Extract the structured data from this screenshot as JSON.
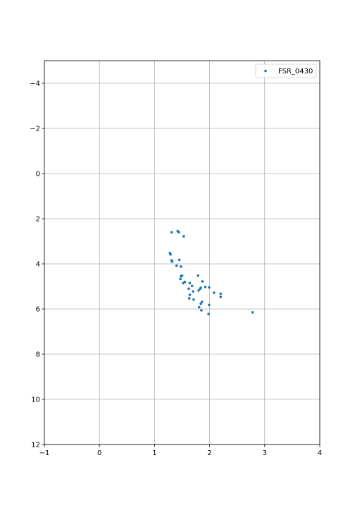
{
  "chart_data": {
    "type": "scatter",
    "title": "",
    "xlabel": "",
    "ylabel": "",
    "xlim": [
      -1,
      4
    ],
    "ylim": [
      12,
      -5
    ],
    "y_inverted": true,
    "x_ticks": [
      -1,
      0,
      1,
      2,
      3,
      4
    ],
    "x_tick_labels": [
      "−1",
      "0",
      "1",
      "2",
      "3",
      "4"
    ],
    "y_ticks": [
      -4,
      -2,
      0,
      2,
      4,
      6,
      8,
      10,
      12
    ],
    "y_tick_labels": [
      "−4",
      "−2",
      "0",
      "2",
      "4",
      "6",
      "8",
      "10",
      "12"
    ],
    "grid": true,
    "legend_position": "top-right",
    "series": [
      {
        "name": "FSR_0430",
        "color": "#1f77b4",
        "x": [
          1.31,
          1.42,
          1.44,
          1.53,
          1.28,
          1.29,
          1.31,
          1.32,
          1.45,
          1.4,
          1.48,
          1.5,
          1.48,
          1.47,
          1.55,
          1.52,
          1.79,
          1.64,
          1.68,
          1.62,
          1.7,
          1.8,
          1.87,
          1.92,
          1.84,
          1.83,
          1.99,
          2.08,
          2.2,
          2.2,
          1.64,
          1.63,
          1.71,
          1.86,
          1.84,
          1.81,
          1.99,
          1.85,
          1.98,
          2.78
        ],
        "y": [
          2.6,
          2.55,
          2.6,
          2.78,
          3.52,
          3.58,
          3.84,
          3.9,
          3.82,
          4.08,
          4.12,
          4.52,
          4.55,
          4.67,
          4.8,
          4.85,
          4.52,
          4.85,
          4.98,
          5.1,
          5.22,
          5.18,
          4.78,
          5.02,
          5.06,
          5.1,
          5.04,
          5.28,
          5.32,
          5.46,
          5.37,
          5.53,
          5.58,
          5.68,
          5.76,
          5.92,
          5.82,
          6.06,
          6.22,
          6.15
        ]
      }
    ]
  }
}
